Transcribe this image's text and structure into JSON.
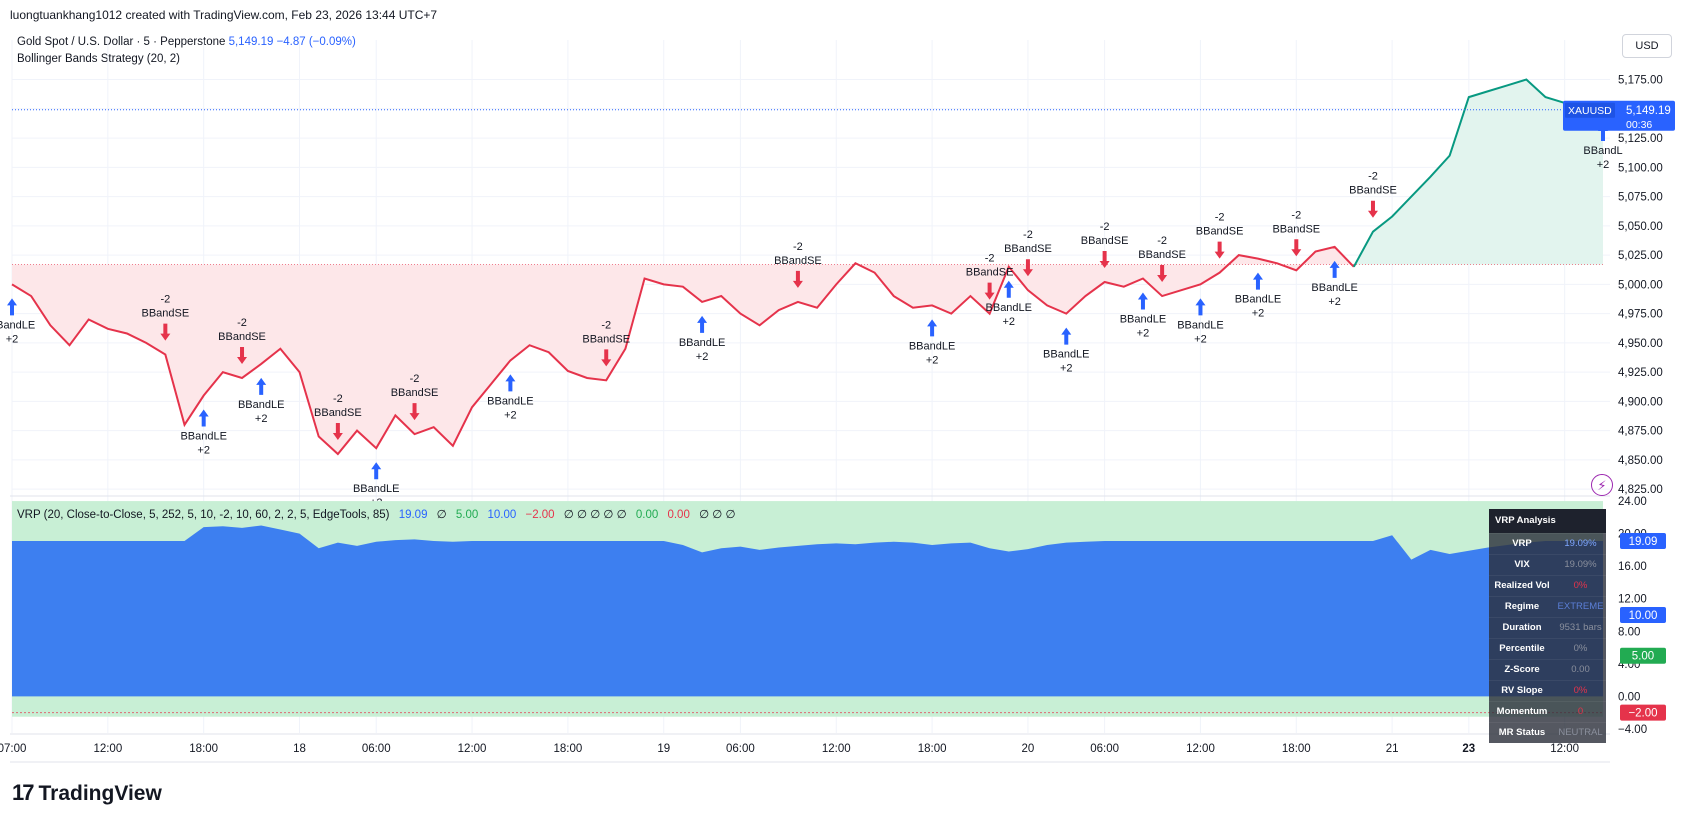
{
  "header": {
    "caption": "luongtuankhang1012 created with TradingView.com, Feb 23, 2026 13:44 UTC+7"
  },
  "legend": {
    "symbol": "Gold Spot / U.S. Dollar · 5 · Pepperstone",
    "price": "5,149.19",
    "change": "−4.87 (−0.09%)",
    "strategy": "Bollinger Bands Strategy (20, 2)"
  },
  "currency": "USD",
  "vrp_legend": {
    "name": "VRP (20, Close-to-Close, 5, 252, 5, 10, -2, 10, 60, 2, 2, 5, EdgeTools, 85)",
    "v1": "19.09",
    "v2": "∅",
    "v3": "5.00",
    "v4": "10.00",
    "v5": "−2.00",
    "v6": "∅ ∅ ∅ ∅ ∅",
    "v7": "0.00",
    "v8": "0.00",
    "v9": "∅ ∅ ∅"
  },
  "vrp_table": {
    "title": "VRP Analysis",
    "rows": [
      {
        "k": "VRP",
        "v": "19.09%"
      },
      {
        "k": "VIX",
        "v": "19.09%"
      },
      {
        "k": "Realized Vol",
        "v": "0%"
      },
      {
        "k": "Regime",
        "v": "EXTREME"
      },
      {
        "k": "Duration",
        "v": "9531 bars"
      },
      {
        "k": "Percentile",
        "v": "0%"
      },
      {
        "k": "Z-Score",
        "v": "0.00"
      },
      {
        "k": "RV Slope",
        "v": "0%"
      },
      {
        "k": "Momentum",
        "v": "0"
      },
      {
        "k": "MR Status",
        "v": "NEUTRAL"
      }
    ]
  },
  "footer": {
    "logo_text": "TradingView"
  },
  "colors": {
    "bear": "#e5334b",
    "bull": "#089981",
    "blue": "#2962ff",
    "vrp_fill": "#3d7ff0",
    "zone_green": "#c8efd5",
    "bear_fill": "#fde7e9",
    "bull_fill": "#e2f4ee"
  },
  "chart_data": [
    {
      "type": "line",
      "title": "",
      "x_ticks": [
        "07:00",
        "12:00",
        "18:00",
        "18",
        "06:00",
        "12:00",
        "18:00",
        "19",
        "06:00",
        "12:00",
        "18:00",
        "20",
        "06:00",
        "12:00",
        "18:00",
        "21",
        "23",
        "12:00"
      ],
      "x_tick_index": [
        0,
        5,
        10,
        15,
        19,
        24,
        29,
        34,
        38,
        43,
        48,
        53,
        57,
        62,
        67,
        72,
        76,
        81
      ],
      "y_ticks": [
        4825,
        4850,
        4875,
        4900,
        4925,
        4950,
        4975,
        5000,
        5025,
        5050,
        5075,
        5100,
        5125,
        5150,
        5175
      ],
      "y_tick_labels": [
        "4,825.00",
        "4,850.00",
        "4,875.00",
        "4,900.00",
        "4,925.00",
        "4,950.00",
        "4,975.00",
        "5,000.00",
        "5,025.00",
        "5,050.00",
        "5,075.00",
        "5,100.00",
        "5,125.00",
        "5,150.00",
        "5,175.00"
      ],
      "ylim": [
        4820,
        5190
      ],
      "last_price": 5149.19,
      "last_price_label": "5,149.19",
      "last_price_symbol": "XAUUSD",
      "countdown": "00:36",
      "reference_level": 5017,
      "series": [
        {
          "values": [
            5000,
            4990,
            4965,
            4948,
            4970,
            4962,
            4958,
            4950,
            4940,
            4880,
            4905,
            4925,
            4920,
            4932,
            4945,
            4925,
            4870,
            4855,
            4875,
            4860,
            4888,
            4872,
            4878,
            4862,
            4895,
            4915,
            4935,
            4948,
            4942,
            4926,
            4920,
            4918,
            4945,
            5005,
            5000,
            4998,
            4985,
            4990,
            4975,
            4965,
            4978,
            4985,
            4980,
            5000,
            5018,
            5010,
            4990,
            4980,
            4982,
            4975,
            4990,
            4975,
            5015,
            4995,
            4982,
            4975,
            4990,
            5002,
            4998,
            5005,
            4990,
            4995,
            5000,
            5010,
            5025,
            5022,
            5018,
            5012,
            5028,
            5032,
            5015,
            5045,
            5058,
            5075,
            5092,
            5110,
            5160,
            5165,
            5170,
            5175,
            5160,
            5155,
            5152,
            5149
          ]
        }
      ],
      "signals": [
        {
          "i": 0,
          "type": "LE",
          "label": "BBandLE",
          "qty": "+2"
        },
        {
          "i": 8,
          "type": "SE",
          "label": "BBandSE",
          "qty": "-2"
        },
        {
          "i": 10,
          "type": "LE",
          "label": "BBandLE",
          "qty": "+2"
        },
        {
          "i": 12,
          "type": "SE",
          "label": "BBandSE",
          "qty": "-2"
        },
        {
          "i": 13,
          "type": "LE",
          "label": "BBandLE",
          "qty": "+2"
        },
        {
          "i": 17,
          "type": "SE",
          "label": "BBandSE",
          "qty": "-2"
        },
        {
          "i": 19,
          "type": "LE",
          "label": "BBandLE",
          "qty": "+2"
        },
        {
          "i": 21,
          "type": "SE",
          "label": "BBandSE",
          "qty": "-2"
        },
        {
          "i": 26,
          "type": "LE",
          "label": "BBandLE",
          "qty": "+2"
        },
        {
          "i": 31,
          "type": "SE",
          "label": "BBandSE",
          "qty": "-2"
        },
        {
          "i": 36,
          "type": "LE",
          "label": "BBandLE",
          "qty": "+2"
        },
        {
          "i": 41,
          "type": "SE",
          "label": "BBandSE",
          "qty": "-2"
        },
        {
          "i": 48,
          "type": "LE",
          "label": "BBandLE",
          "qty": "+2"
        },
        {
          "i": 51,
          "type": "SE",
          "label": "BBandSE",
          "qty": "-2"
        },
        {
          "i": 52,
          "type": "LE",
          "label": "BBandLE",
          "qty": "+2"
        },
        {
          "i": 53,
          "type": "SE",
          "label": "BBandSE",
          "qty": "-2"
        },
        {
          "i": 55,
          "type": "LE",
          "label": "BBandLE",
          "qty": "+2"
        },
        {
          "i": 57,
          "type": "SE",
          "label": "BBandSE",
          "qty": "-2"
        },
        {
          "i": 59,
          "type": "LE",
          "label": "BBandLE",
          "qty": "+2"
        },
        {
          "i": 60,
          "type": "SE",
          "label": "BBandSE",
          "qty": "-2"
        },
        {
          "i": 62,
          "type": "LE",
          "label": "BBandLE",
          "qty": "+2"
        },
        {
          "i": 63,
          "type": "SE",
          "label": "BBandSE",
          "qty": "-2"
        },
        {
          "i": 65,
          "type": "LE",
          "label": "BBandLE",
          "qty": "+2"
        },
        {
          "i": 67,
          "type": "SE",
          "label": "BBandSE",
          "qty": "-2"
        },
        {
          "i": 69,
          "type": "LE",
          "label": "BBandLE",
          "qty": "+2"
        },
        {
          "i": 71,
          "type": "SE",
          "label": "BBandSE",
          "qty": "-2"
        },
        {
          "i": 83,
          "type": "LE",
          "label": "BBandL",
          "qty": "+2"
        }
      ]
    },
    {
      "type": "area",
      "title": "",
      "y_ticks": [
        -4,
        0,
        4,
        8,
        12,
        16,
        20,
        24
      ],
      "y_tick_labels": [
        "−4.00",
        "0.00",
        "4.00",
        "8.00",
        "12.00",
        "16.00",
        "20.00",
        "24.00"
      ],
      "ylim": [
        -4.5,
        24.5
      ],
      "zone": [
        -2.5,
        24
      ],
      "levels": [
        {
          "value": 19.09,
          "label": "19.09",
          "color": "#2962ff"
        },
        {
          "value": 10,
          "label": "10.00",
          "color": "#2962ff"
        },
        {
          "value": 5,
          "label": "5.00",
          "color": "#22ab52"
        },
        {
          "value": -2,
          "label": "−2.00",
          "color": "#e5334b"
        }
      ],
      "series": [
        {
          "values": [
            19.09,
            19.09,
            19.09,
            19.09,
            19.09,
            19.09,
            19.09,
            19.09,
            19.09,
            19.09,
            20.8,
            20.9,
            20.7,
            21.0,
            20.5,
            20.0,
            18.2,
            18.9,
            18.5,
            19.0,
            19.2,
            19.3,
            19.1,
            19.0,
            19.09,
            19.09,
            19.09,
            19.09,
            19.09,
            19.09,
            19.09,
            19.09,
            19.09,
            19.09,
            19.09,
            18.6,
            17.7,
            18.2,
            18.4,
            18.0,
            18.3,
            18.5,
            18.7,
            18.8,
            18.7,
            18.9,
            19.0,
            18.9,
            18.6,
            18.8,
            18.9,
            18.2,
            17.8,
            18.1,
            18.6,
            18.9,
            19.0,
            19.09,
            19.09,
            19.09,
            19.09,
            19.09,
            19.09,
            19.09,
            19.09,
            19.09,
            19.09,
            19.09,
            19.09,
            19.09,
            19.09,
            19.09,
            19.8,
            16.8,
            18.0,
            17.5,
            17.9,
            18.3,
            18.6,
            18.9,
            19.09,
            19.09,
            19.09,
            19.09
          ]
        }
      ]
    }
  ]
}
